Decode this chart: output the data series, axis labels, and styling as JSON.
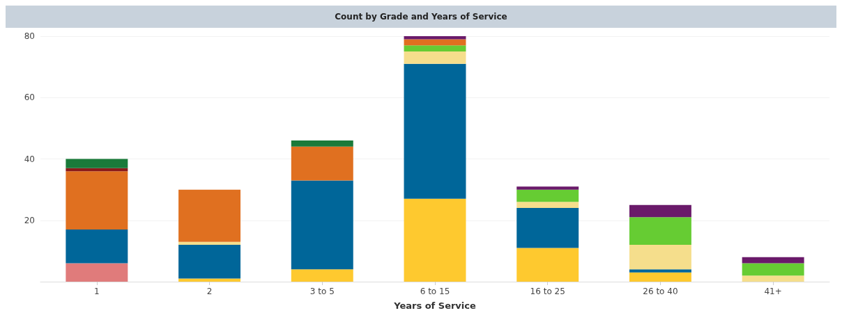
{
  "chart_data": {
    "type": "bar",
    "title": "Count by Grade and Years of Service",
    "xlabel": "Years of Service",
    "categories": [
      "1",
      "2",
      "3 to 5",
      "6 to 15",
      "16 to 25",
      "26 to 40",
      "41+"
    ],
    "stacked": true,
    "ylim": [
      0,
      80
    ],
    "yticks": [
      20,
      40,
      60,
      80
    ],
    "grid": "y",
    "legend": false,
    "series": [
      {
        "color": "#e07b7b",
        "values": [
          6,
          0,
          0,
          0,
          0,
          0,
          0
        ]
      },
      {
        "color": "#fec92f",
        "values": [
          0,
          1,
          4,
          27,
          11,
          3,
          0
        ]
      },
      {
        "color": "#006699",
        "values": [
          11,
          11,
          29,
          44,
          13,
          1,
          0
        ]
      },
      {
        "color": "#f5de8c",
        "values": [
          0,
          1,
          0,
          4,
          2,
          8,
          2
        ]
      },
      {
        "color": "#66cc33",
        "values": [
          0,
          0,
          0,
          2,
          4,
          9,
          4
        ]
      },
      {
        "color": "#e07020",
        "values": [
          19,
          17,
          11,
          2,
          0,
          0,
          0
        ]
      },
      {
        "color": "#8b1a1a",
        "values": [
          1,
          0,
          0,
          0,
          0,
          0,
          0
        ]
      },
      {
        "color": "#1a7a3a",
        "values": [
          3,
          0,
          2,
          0,
          0,
          0,
          0
        ]
      },
      {
        "color": "#6a1a6a",
        "values": [
          0,
          0,
          0,
          1,
          1,
          4,
          2
        ]
      }
    ]
  }
}
